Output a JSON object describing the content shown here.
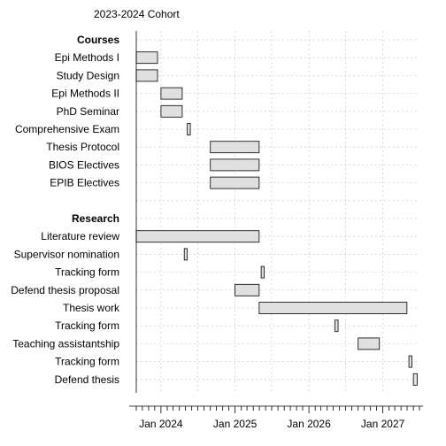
{
  "chart_data": {
    "type": "gantt",
    "title": "2023-2024 Cohort",
    "xlabel": "",
    "ylabel": "",
    "grid": true,
    "x_range": [
      "2023-09-01",
      "2027-07-01"
    ],
    "x_ticks": [
      "Jan 2024",
      "Jan 2025",
      "Jan 2026",
      "Jan 2027"
    ],
    "rows": [
      {
        "label": "Courses",
        "header": true
      },
      {
        "label": "Epi Methods I",
        "start": "2023-09-01",
        "end": "2023-12-15"
      },
      {
        "label": "Study Design",
        "start": "2023-09-01",
        "end": "2023-12-15"
      },
      {
        "label": "Epi Methods II",
        "start": "2024-01-01",
        "end": "2024-04-15"
      },
      {
        "label": "PhD Seminar",
        "start": "2024-01-01",
        "end": "2024-04-15"
      },
      {
        "label": "Comprehensive Exam",
        "start": "2024-05-10",
        "end": "2024-05-25"
      },
      {
        "label": "Thesis Protocol",
        "start": "2024-09-01",
        "end": "2025-04-30"
      },
      {
        "label": "BIOS Electives",
        "start": "2024-09-01",
        "end": "2025-04-30"
      },
      {
        "label": "EPIB Electives",
        "start": "2024-09-01",
        "end": "2025-04-30"
      },
      {
        "label": "",
        "spacer": true
      },
      {
        "label": "Research",
        "header": true
      },
      {
        "label": "Literature review",
        "start": "2023-09-01",
        "end": "2025-04-30"
      },
      {
        "label": "Supervisor nomination",
        "start": "2024-04-25",
        "end": "2024-05-10"
      },
      {
        "label": "Tracking form",
        "start": "2025-05-10",
        "end": "2025-05-25"
      },
      {
        "label": "Defend thesis proposal",
        "start": "2025-01-01",
        "end": "2025-04-30"
      },
      {
        "label": "Thesis work",
        "start": "2025-04-30",
        "end": "2027-04-30"
      },
      {
        "label": "Tracking form",
        "start": "2026-05-10",
        "end": "2026-05-25"
      },
      {
        "label": "Teaching assistantship",
        "start": "2026-09-01",
        "end": "2026-12-15"
      },
      {
        "label": "Tracking form",
        "start": "2027-05-10",
        "end": "2027-05-25"
      },
      {
        "label": "Defend thesis",
        "start": "2027-06-01",
        "end": "2027-06-20"
      }
    ]
  }
}
